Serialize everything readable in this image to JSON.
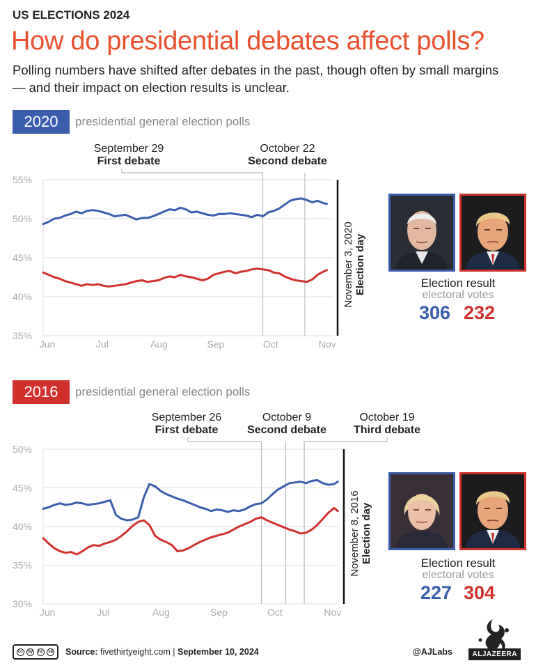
{
  "header": {
    "kicker": "US ELECTIONS 2024",
    "title": "How do presidential debates affect polls?",
    "subtitle": "Polling numbers have shifted after debates in the past, though often by small margins — and their impact on election results is unclear."
  },
  "colors": {
    "democrat": "#3a5eab",
    "republican": "#d0312d",
    "accent": "#e8502e"
  },
  "sections": [
    {
      "year": "2020",
      "badge_color": "#3a5eab",
      "label": "presidential general election polls",
      "result_title": "Election result",
      "result_sub": "electoral votes",
      "dem_ev": "306",
      "rep_ev": "232",
      "dem_candidate_icon": "biden-portrait-icon",
      "rep_candidate_icon": "trump-portrait-icon",
      "chart_data": {
        "type": "line",
        "ylim": [
          35,
          55
        ],
        "y_ticks": [
          55,
          50,
          45,
          40,
          35
        ],
        "y_tick_labels": [
          "55%",
          "50%",
          "45%",
          "40%",
          "35%"
        ],
        "x_domain": [
          0,
          159
        ],
        "x_ticks": [
          {
            "label": "Jun",
            "x": 0
          },
          {
            "label": "Jul",
            "x": 30
          },
          {
            "label": "Aug",
            "x": 61
          },
          {
            "label": "Sep",
            "x": 92
          },
          {
            "label": "Oct",
            "x": 122
          },
          {
            "label": "Nov",
            "x": 153
          }
        ],
        "grid": "horizontal",
        "events": [
          {
            "date": "September 29",
            "name": "First debate",
            "x": 120
          },
          {
            "date": "October 22",
            "name": "Second debate",
            "x": 143
          }
        ],
        "election_day": {
          "date": "November 3, 2020",
          "name": "Election day",
          "x": 155
        },
        "series": [
          {
            "color": "#3a5eab",
            "x": [
              0,
              3,
              6,
              9,
              12,
              15,
              18,
              21,
              24,
              27,
              30,
              33,
              36,
              39,
              42,
              45,
              48,
              51,
              54,
              57,
              60,
              63,
              66,
              69,
              72,
              75,
              78,
              81,
              84,
              87,
              90,
              93,
              96,
              99,
              102,
              105,
              108,
              111,
              114,
              117,
              120,
              123,
              126,
              129,
              132,
              135,
              138,
              141,
              144,
              147,
              150,
              153,
              155
            ],
            "values": [
              49.3,
              49.6,
              50.0,
              50.1,
              50.4,
              50.6,
              50.9,
              50.7,
              51.0,
              51.1,
              51.0,
              50.8,
              50.6,
              50.3,
              50.4,
              50.5,
              50.2,
              49.9,
              50.1,
              50.1,
              50.3,
              50.6,
              50.9,
              51.2,
              51.1,
              51.4,
              51.2,
              50.8,
              50.9,
              50.7,
              50.5,
              50.4,
              50.6,
              50.6,
              50.7,
              50.6,
              50.5,
              50.4,
              50.2,
              50.5,
              50.3,
              50.8,
              51.0,
              51.3,
              51.8,
              52.3,
              52.5,
              52.6,
              52.4,
              52.1,
              52.3,
              52.0,
              51.9
            ]
          },
          {
            "color": "#d0312d",
            "x": [
              0,
              3,
              6,
              9,
              12,
              15,
              18,
              21,
              24,
              27,
              30,
              33,
              36,
              39,
              42,
              45,
              48,
              51,
              54,
              57,
              60,
              63,
              66,
              69,
              72,
              75,
              78,
              81,
              84,
              87,
              90,
              93,
              96,
              99,
              102,
              105,
              108,
              111,
              114,
              117,
              120,
              123,
              126,
              129,
              132,
              135,
              138,
              141,
              144,
              147,
              150,
              153,
              155
            ],
            "values": [
              43.1,
              42.8,
              42.5,
              42.3,
              42.0,
              41.8,
              41.6,
              41.4,
              41.6,
              41.5,
              41.6,
              41.4,
              41.3,
              41.4,
              41.5,
              41.6,
              41.8,
              42.0,
              42.1,
              41.9,
              42.0,
              42.1,
              42.4,
              42.6,
              42.5,
              42.8,
              42.6,
              42.5,
              42.3,
              42.1,
              42.3,
              42.8,
              43.0,
              43.2,
              43.3,
              43.0,
              43.2,
              43.3,
              43.5,
              43.6,
              43.5,
              43.4,
              43.1,
              43.0,
              42.6,
              42.3,
              42.1,
              42.0,
              41.9,
              42.2,
              42.8,
              43.2,
              43.4
            ]
          }
        ]
      }
    },
    {
      "year": "2016",
      "badge_color": "#d0312d",
      "label": "presidential general election polls",
      "result_title": "Election result",
      "result_sub": "electoral votes",
      "dem_ev": "227",
      "rep_ev": "304",
      "dem_candidate_icon": "clinton-portrait-icon",
      "rep_candidate_icon": "trump-portrait-icon",
      "chart_data": {
        "type": "line",
        "ylim": [
          30,
          50
        ],
        "y_ticks": [
          50,
          45,
          40,
          35,
          30
        ],
        "y_tick_labels": [
          "50%",
          "45%",
          "40%",
          "35%",
          "30%"
        ],
        "x_domain": [
          0,
          159
        ],
        "x_ticks": [
          {
            "label": "Jun",
            "x": 0
          },
          {
            "label": "Jul",
            "x": 30
          },
          {
            "label": "Aug",
            "x": 61
          },
          {
            "label": "Sep",
            "x": 92
          },
          {
            "label": "Oct",
            "x": 122
          },
          {
            "label": "Nov",
            "x": 153
          }
        ],
        "grid": "horizontal",
        "events": [
          {
            "date": "September 26",
            "name": "First debate",
            "x": 117
          },
          {
            "date": "October 9",
            "name": "Second debate",
            "x": 130
          },
          {
            "date": "October 19",
            "name": "Third debate",
            "x": 140
          }
        ],
        "election_day": {
          "date": "November 8, 2016",
          "name": "Election day",
          "x": 160
        },
        "series": [
          {
            "color": "#3a5eab",
            "x": [
              0,
              3,
              6,
              9,
              12,
              15,
              18,
              21,
              24,
              27,
              30,
              33,
              36,
              39,
              42,
              45,
              48,
              51,
              54,
              57,
              60,
              63,
              66,
              69,
              72,
              75,
              78,
              81,
              84,
              87,
              90,
              93,
              96,
              99,
              102,
              105,
              108,
              111,
              114,
              117,
              120,
              123,
              126,
              129,
              132,
              135,
              138,
              141,
              144,
              147,
              150,
              153,
              156,
              158
            ],
            "values": [
              42.3,
              42.5,
              42.8,
              43.0,
              42.8,
              42.9,
              43.1,
              43.0,
              42.8,
              42.9,
              43.0,
              43.2,
              43.4,
              41.5,
              41.0,
              40.8,
              40.9,
              41.2,
              43.8,
              45.5,
              45.2,
              44.6,
              44.2,
              43.9,
              43.6,
              43.4,
              43.1,
              42.8,
              42.5,
              42.3,
              42.0,
              42.2,
              42.1,
              41.9,
              42.1,
              42.0,
              42.2,
              42.6,
              42.9,
              43.0,
              43.5,
              44.2,
              44.8,
              45.2,
              45.6,
              45.7,
              45.8,
              45.6,
              45.9,
              46.0,
              45.6,
              45.4,
              45.5,
              45.8
            ]
          },
          {
            "color": "#d0312d",
            "x": [
              0,
              3,
              6,
              9,
              12,
              15,
              18,
              21,
              24,
              27,
              30,
              33,
              36,
              39,
              42,
              45,
              48,
              51,
              54,
              57,
              60,
              63,
              66,
              69,
              72,
              75,
              78,
              81,
              84,
              87,
              90,
              93,
              96,
              99,
              102,
              105,
              108,
              111,
              114,
              117,
              120,
              123,
              126,
              129,
              132,
              135,
              138,
              141,
              144,
              147,
              150,
              153,
              156,
              158
            ],
            "values": [
              38.5,
              37.8,
              37.2,
              36.8,
              36.6,
              36.7,
              36.4,
              36.8,
              37.3,
              37.6,
              37.5,
              37.8,
              38.0,
              38.3,
              38.8,
              39.4,
              40.1,
              40.6,
              40.8,
              40.2,
              38.8,
              38.3,
              38.0,
              37.6,
              36.8,
              36.9,
              37.2,
              37.6,
              38.0,
              38.3,
              38.6,
              38.8,
              39.0,
              39.2,
              39.6,
              40.0,
              40.3,
              40.6,
              41.0,
              41.2,
              40.8,
              40.5,
              40.2,
              39.9,
              39.6,
              39.4,
              39.1,
              39.2,
              39.6,
              40.2,
              41.0,
              41.8,
              42.4,
              42.0
            ]
          }
        ]
      }
    }
  ],
  "footer": {
    "license": "cc by nc sa",
    "license_icons": [
      "cc",
      "by",
      "nc",
      "sa"
    ],
    "source_label": "Source:",
    "source_text": "fivethirtyeight.com",
    "separator": "|",
    "date": "September 10, 2024",
    "handle": "@AJLabs",
    "brand": "ALJAZEERA"
  }
}
